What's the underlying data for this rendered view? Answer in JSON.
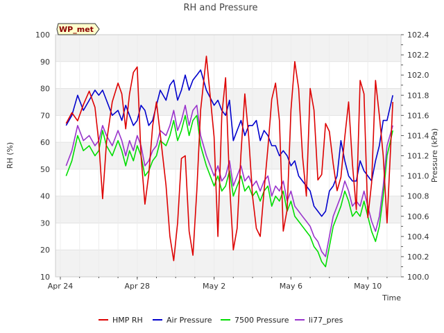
{
  "chart_data": {
    "type": "line",
    "title": "RH and Pressure",
    "station_label": "WP_met",
    "xlabel": "Time",
    "ylabel_left": "RH (%)",
    "ylabel_right": "Pressure (kPa)",
    "x_ticks": [
      {
        "day": 0,
        "label": "Apr 24"
      },
      {
        "day": 4,
        "label": "Apr 28"
      },
      {
        "day": 8,
        "label": "May 2"
      },
      {
        "day": 12,
        "label": "May 6"
      },
      {
        "day": 16,
        "label": "May 10"
      }
    ],
    "xlim_days": [
      0,
      18
    ],
    "y_left": {
      "lim": [
        10,
        100
      ],
      "ticks": [
        10,
        20,
        30,
        40,
        50,
        60,
        70,
        80,
        90,
        100
      ]
    },
    "y_right": {
      "lim": [
        100.0,
        102.4
      ],
      "ticks": [
        "100.0",
        "100.2",
        "100.4",
        "100.6",
        "100.8",
        "101.0",
        "101.2",
        "101.4",
        "101.6",
        "101.8",
        "102.0",
        "102.2",
        "102.4"
      ]
    },
    "grid": true,
    "banded_background": true,
    "legend_position": "bottom",
    "series": [
      {
        "name": "HMP RH",
        "axis": "left",
        "color": "#dd0000",
        "x": [
          0.3,
          0.6,
          0.9,
          1.2,
          1.5,
          1.8,
          2.0,
          2.2,
          2.4,
          2.7,
          3.0,
          3.2,
          3.4,
          3.6,
          3.8,
          4.0,
          4.2,
          4.4,
          4.6,
          4.8,
          5.0,
          5.2,
          5.5,
          5.7,
          5.9,
          6.1,
          6.3,
          6.5,
          6.7,
          6.9,
          7.1,
          7.3,
          7.6,
          8.0,
          8.2,
          8.4,
          8.6,
          8.8,
          9.0,
          9.2,
          9.4,
          9.6,
          9.8,
          10.0,
          10.2,
          10.4,
          10.6,
          10.8,
          11.0,
          11.2,
          11.4,
          11.6,
          11.8,
          12.0,
          12.2,
          12.4,
          12.6,
          12.8,
          13.0,
          13.2,
          13.4,
          13.6,
          13.8,
          14.0,
          14.2,
          14.4,
          14.6,
          14.8,
          15.0,
          15.2,
          15.4,
          15.6,
          15.8,
          16.0,
          16.2,
          16.4,
          16.6,
          16.8,
          17.0,
          17.3
        ],
        "values": [
          67,
          71,
          68,
          74,
          79,
          73,
          60,
          39,
          60,
          75,
          82,
          78,
          65,
          78,
          86,
          88,
          55,
          37,
          48,
          66,
          75,
          63,
          44,
          25,
          16,
          30,
          54,
          55,
          27,
          18,
          42,
          72,
          92,
          62,
          25,
          70,
          84,
          45,
          20,
          28,
          56,
          78,
          62,
          40,
          28,
          25,
          42,
          58,
          76,
          82,
          68,
          27,
          35,
          72,
          90,
          80,
          55,
          40,
          80,
          72,
          46,
          48,
          67,
          64,
          52,
          42,
          47,
          62,
          75,
          52,
          35,
          83,
          78,
          32,
          45,
          83,
          70,
          55,
          30,
          75
        ]
      },
      {
        "name": "Air Pressure",
        "axis": "right",
        "color": "#0000cc",
        "x": [
          0.3,
          0.6,
          0.9,
          1.2,
          1.5,
          1.8,
          2.0,
          2.2,
          2.4,
          2.7,
          3.0,
          3.2,
          3.4,
          3.6,
          3.8,
          4.0,
          4.2,
          4.4,
          4.6,
          4.8,
          5.0,
          5.2,
          5.5,
          5.7,
          5.9,
          6.1,
          6.3,
          6.5,
          6.7,
          6.9,
          7.1,
          7.3,
          7.6,
          8.0,
          8.2,
          8.4,
          8.6,
          8.8,
          9.0,
          9.2,
          9.4,
          9.6,
          9.8,
          10.0,
          10.2,
          10.4,
          10.6,
          10.8,
          11.0,
          11.2,
          11.4,
          11.6,
          11.8,
          12.0,
          12.2,
          12.4,
          12.6,
          12.8,
          13.0,
          13.2,
          13.4,
          13.6,
          13.8,
          14.0,
          14.2,
          14.4,
          14.6,
          14.8,
          15.0,
          15.2,
          15.4,
          15.6,
          15.8,
          16.0,
          16.2,
          16.4,
          16.6,
          16.8,
          17.0,
          17.3
        ],
        "values": [
          101.5,
          101.6,
          101.8,
          101.65,
          101.75,
          101.85,
          101.8,
          101.85,
          101.75,
          101.6,
          101.65,
          101.55,
          101.7,
          101.6,
          101.5,
          101.55,
          101.7,
          101.65,
          101.5,
          101.55,
          101.7,
          101.85,
          101.75,
          101.9,
          101.95,
          101.75,
          101.85,
          102.0,
          101.85,
          101.95,
          102.0,
          102.05,
          101.85,
          101.7,
          101.75,
          101.65,
          101.6,
          101.75,
          101.35,
          101.45,
          101.55,
          101.4,
          101.5,
          101.5,
          101.55,
          101.35,
          101.45,
          101.4,
          101.3,
          101.3,
          101.2,
          101.25,
          101.2,
          101.1,
          101.15,
          101.0,
          100.95,
          100.9,
          100.85,
          100.7,
          100.65,
          100.6,
          100.65,
          100.85,
          100.9,
          101.0,
          101.35,
          101.15,
          101.0,
          100.95,
          100.95,
          101.15,
          101.05,
          101.0,
          100.95,
          101.15,
          101.3,
          101.55,
          101.55,
          101.8
        ]
      },
      {
        "name": "7500 Pressure",
        "axis": "right",
        "color": "#00dd00",
        "x": [
          0.3,
          0.6,
          0.9,
          1.2,
          1.5,
          1.8,
          2.0,
          2.2,
          2.4,
          2.7,
          3.0,
          3.2,
          3.4,
          3.6,
          3.8,
          4.0,
          4.2,
          4.4,
          4.6,
          4.8,
          5.0,
          5.2,
          5.5,
          5.7,
          5.9,
          6.1,
          6.3,
          6.5,
          6.7,
          6.9,
          7.1,
          7.3,
          7.6,
          8.0,
          8.2,
          8.4,
          8.6,
          8.8,
          9.0,
          9.2,
          9.4,
          9.6,
          9.8,
          10.0,
          10.2,
          10.4,
          10.6,
          10.8,
          11.0,
          11.2,
          11.4,
          11.6,
          11.8,
          12.0,
          12.2,
          12.4,
          12.6,
          12.8,
          13.0,
          13.2,
          13.4,
          13.6,
          13.8,
          14.0,
          14.2,
          14.4,
          14.6,
          14.8,
          15.0,
          15.2,
          15.4,
          15.6,
          15.8,
          16.0,
          16.2,
          16.4,
          16.6,
          16.8,
          17.0,
          17.3
        ],
        "values": [
          101.0,
          101.15,
          101.4,
          101.25,
          101.3,
          101.2,
          101.25,
          101.45,
          101.3,
          101.2,
          101.35,
          101.25,
          101.1,
          101.25,
          101.15,
          101.3,
          101.2,
          101.0,
          101.05,
          101.15,
          101.2,
          101.35,
          101.3,
          101.4,
          101.55,
          101.35,
          101.45,
          101.6,
          101.4,
          101.55,
          101.6,
          101.3,
          101.1,
          100.9,
          101.0,
          100.85,
          100.9,
          101.05,
          100.8,
          100.9,
          101.0,
          100.85,
          100.9,
          100.8,
          100.85,
          100.75,
          100.85,
          100.9,
          100.7,
          100.8,
          100.75,
          100.85,
          100.65,
          100.75,
          100.6,
          100.55,
          100.5,
          100.45,
          100.4,
          100.3,
          100.25,
          100.15,
          100.1,
          100.3,
          100.5,
          100.6,
          100.7,
          100.85,
          100.75,
          100.6,
          100.65,
          100.6,
          100.75,
          100.6,
          100.45,
          100.35,
          100.5,
          100.8,
          101.2,
          101.45
        ]
      },
      {
        "name": "li77_pres",
        "axis": "right",
        "color": "#9933cc",
        "x": [
          0.3,
          0.6,
          0.9,
          1.2,
          1.5,
          1.8,
          2.0,
          2.2,
          2.4,
          2.7,
          3.0,
          3.2,
          3.4,
          3.6,
          3.8,
          4.0,
          4.2,
          4.4,
          4.6,
          4.8,
          5.0,
          5.2,
          5.5,
          5.7,
          5.9,
          6.1,
          6.3,
          6.5,
          6.7,
          6.9,
          7.1,
          7.3,
          7.6,
          8.0,
          8.2,
          8.4,
          8.6,
          8.8,
          9.0,
          9.2,
          9.4,
          9.6,
          9.8,
          10.0,
          10.2,
          10.4,
          10.6,
          10.8,
          11.0,
          11.2,
          11.4,
          11.6,
          11.8,
          12.0,
          12.2,
          12.4,
          12.6,
          12.8,
          13.0,
          13.2,
          13.4,
          13.6,
          13.8,
          14.0,
          14.2,
          14.4,
          14.6,
          14.8,
          15.0,
          15.2,
          15.4,
          15.6,
          15.8,
          16.0,
          16.2,
          16.4,
          16.6,
          16.8,
          17.0,
          17.3
        ],
        "values": [
          101.1,
          101.25,
          101.5,
          101.35,
          101.4,
          101.3,
          101.35,
          101.5,
          101.4,
          101.3,
          101.45,
          101.35,
          101.2,
          101.35,
          101.25,
          101.4,
          101.3,
          101.1,
          101.15,
          101.25,
          101.3,
          101.45,
          101.4,
          101.5,
          101.65,
          101.45,
          101.55,
          101.7,
          101.5,
          101.65,
          101.7,
          101.4,
          101.2,
          101.0,
          101.1,
          100.95,
          101.0,
          101.15,
          100.9,
          101.0,
          101.1,
          100.95,
          101.0,
          100.9,
          100.95,
          100.85,
          100.95,
          101.0,
          100.8,
          100.9,
          100.85,
          100.95,
          100.75,
          100.85,
          100.7,
          100.65,
          100.6,
          100.55,
          100.5,
          100.4,
          100.35,
          100.25,
          100.2,
          100.4,
          100.6,
          100.7,
          100.8,
          100.95,
          100.85,
          100.7,
          100.75,
          100.7,
          100.85,
          100.7,
          100.55,
          100.45,
          100.6,
          100.9,
          101.3,
          101.5
        ]
      }
    ]
  }
}
